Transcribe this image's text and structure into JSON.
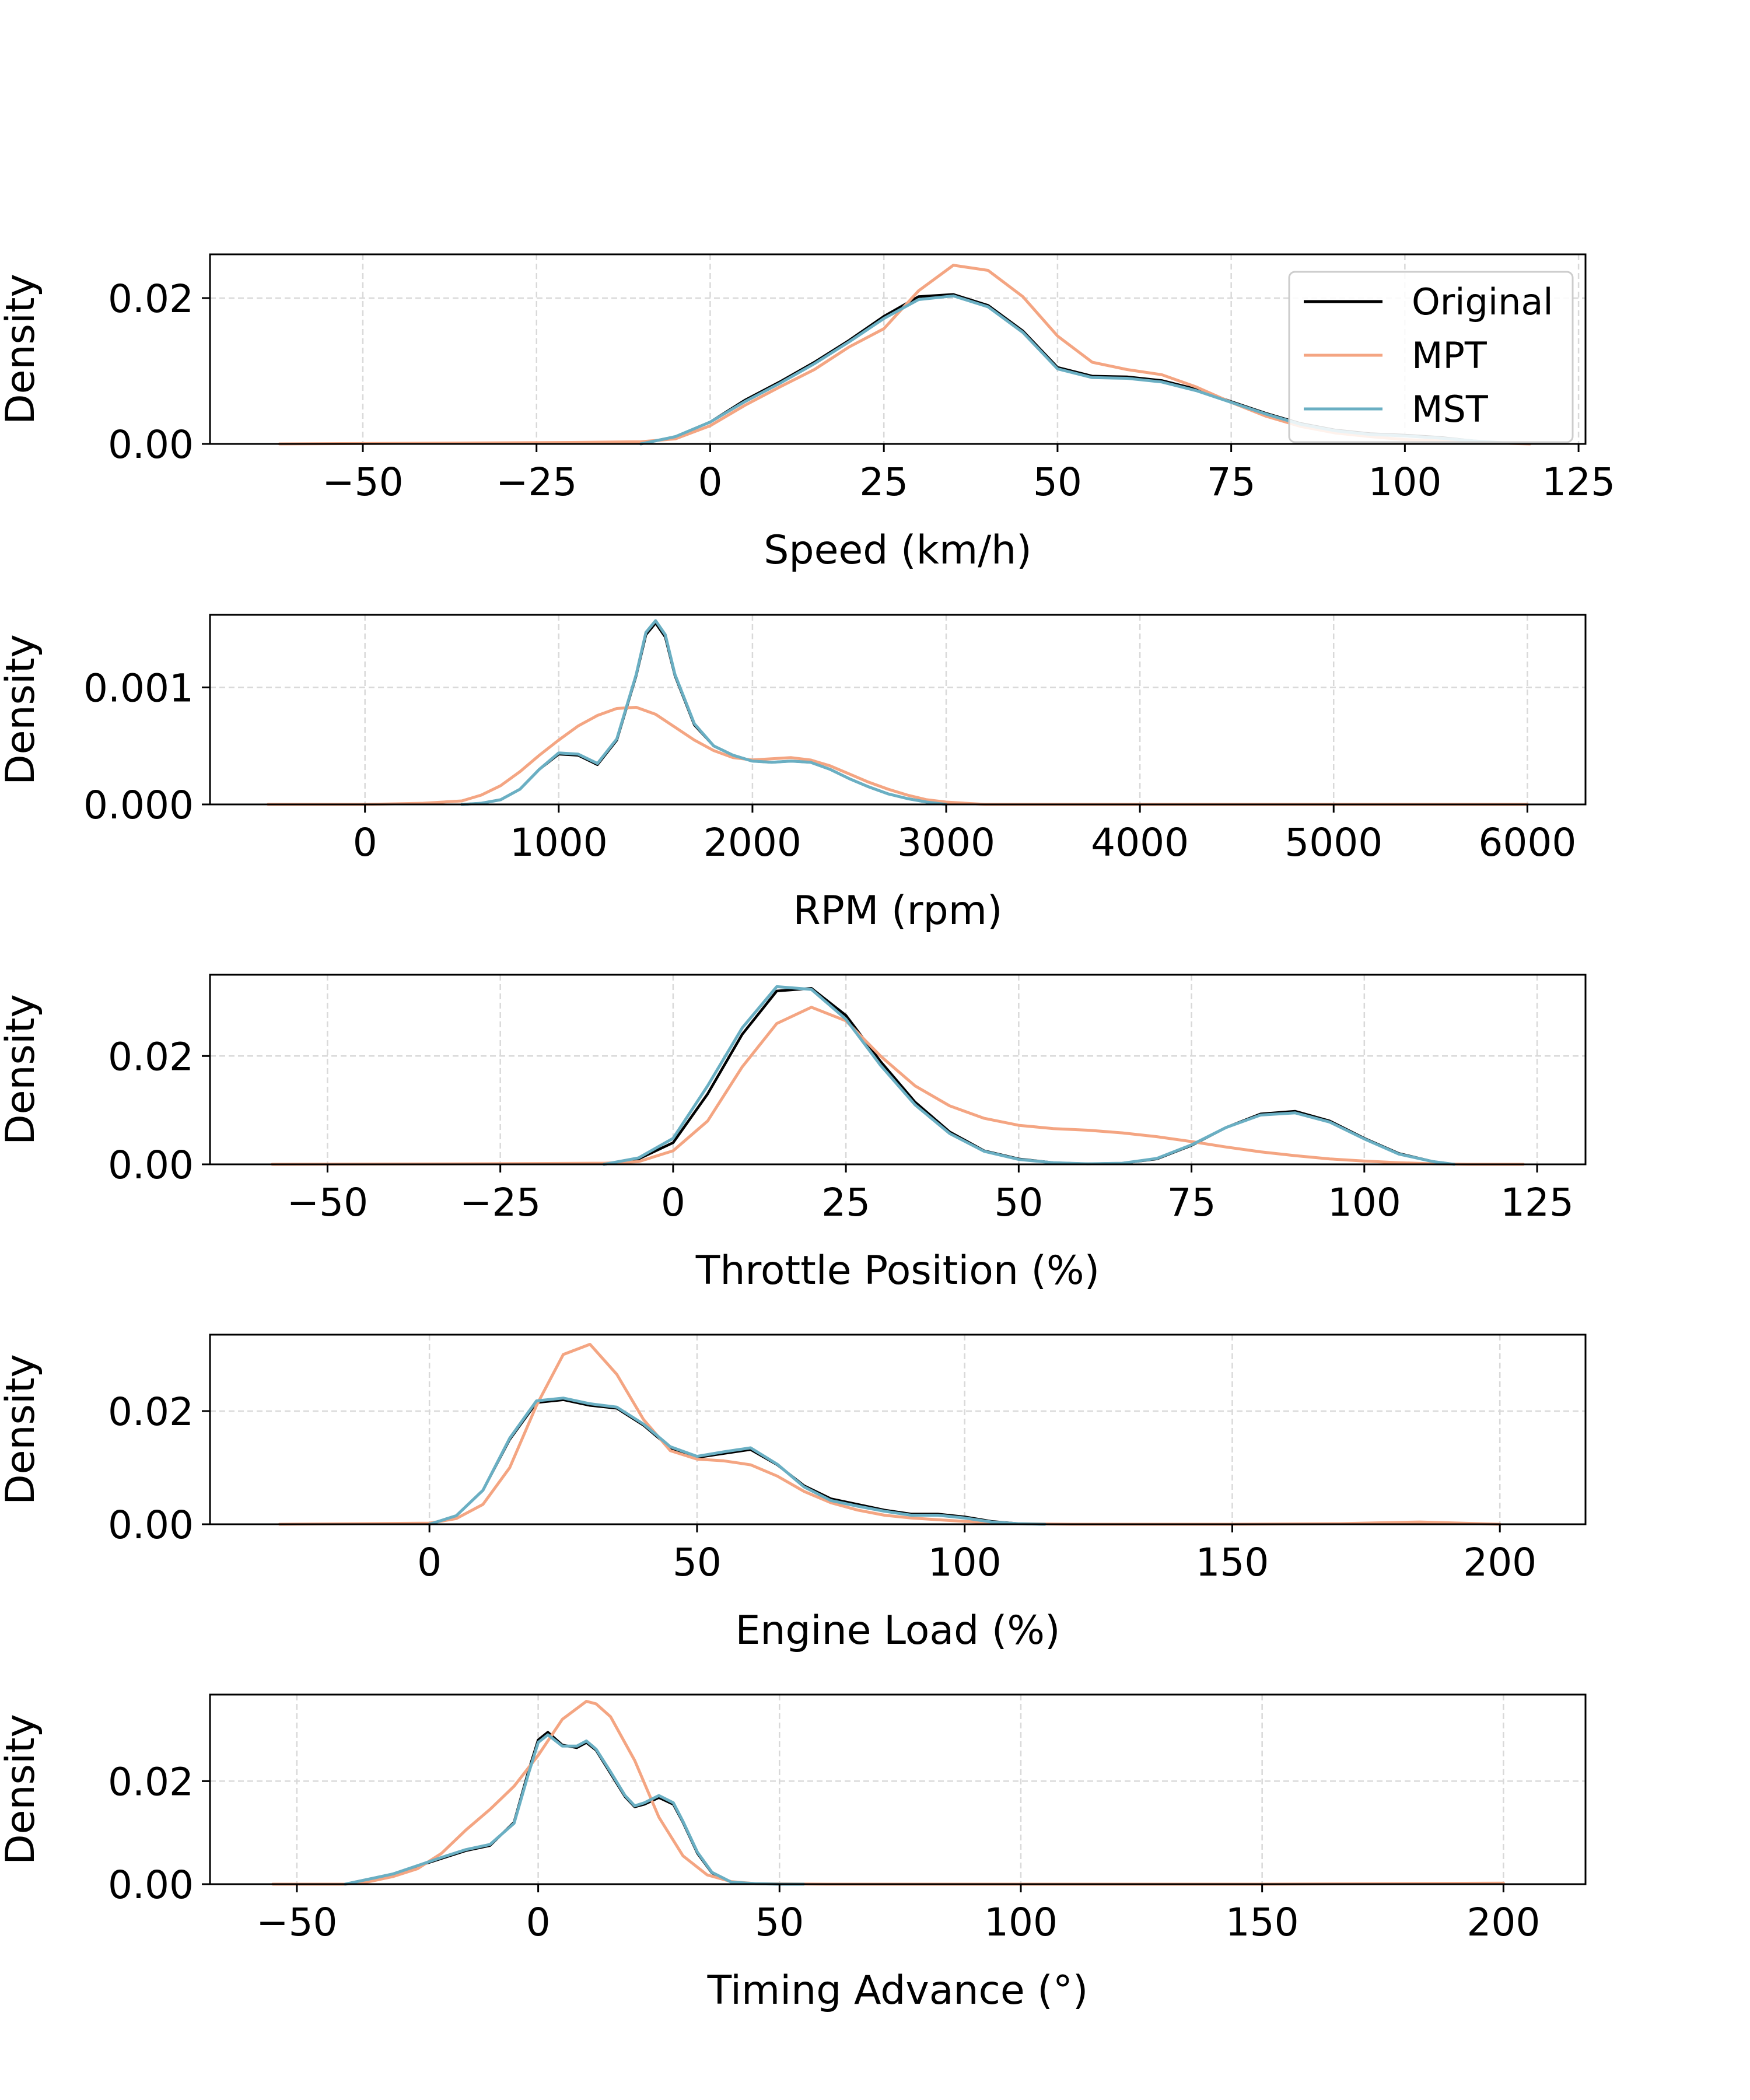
{
  "chart_data": [
    {
      "type": "line",
      "xlabel": "Speed (km/h)",
      "ylabel": "Density",
      "xlim": [
        -72,
        126
      ],
      "ylim": [
        0,
        0.026
      ],
      "xticks": [
        -50,
        -25,
        0,
        25,
        50,
        75,
        100,
        125
      ],
      "xtick_labels": [
        "−50",
        "−25",
        "0",
        "25",
        "50",
        "75",
        "100",
        "125"
      ],
      "yticks": [
        0,
        0.02
      ],
      "ytick_labels": [
        "0.00",
        "0.02"
      ],
      "grid": true,
      "legend": "top-right",
      "series": [
        {
          "name": "Original",
          "x": [
            -10,
            -5,
            0,
            5,
            10,
            15,
            20,
            25,
            30,
            35,
            40,
            45,
            50,
            55,
            60,
            65,
            70,
            75,
            80,
            85,
            90,
            95,
            100,
            105,
            110,
            115
          ],
          "y": [
            0.0,
            0.001,
            0.003,
            0.006,
            0.0085,
            0.0112,
            0.0142,
            0.0175,
            0.0202,
            0.0205,
            0.019,
            0.0155,
            0.0105,
            0.0093,
            0.0092,
            0.0087,
            0.0075,
            0.0058,
            0.0042,
            0.0028,
            0.0019,
            0.0014,
            0.0012,
            0.0009,
            0.0004,
            0.0001
          ]
        },
        {
          "name": "MPT",
          "x": [
            -62,
            -40,
            -20,
            -10,
            -5,
            0,
            5,
            10,
            15,
            20,
            25,
            30,
            35,
            40,
            45,
            50,
            55,
            60,
            65,
            70,
            75,
            80,
            85,
            90,
            95,
            100,
            105,
            110,
            118
          ],
          "y": [
            0.0,
            0.0001,
            0.0002,
            0.0003,
            0.0007,
            0.0025,
            0.0053,
            0.0078,
            0.0102,
            0.0133,
            0.0158,
            0.021,
            0.0245,
            0.0238,
            0.0202,
            0.0148,
            0.0112,
            0.0102,
            0.0095,
            0.0078,
            0.0057,
            0.0038,
            0.0024,
            0.0015,
            0.001,
            0.0006,
            0.0004,
            0.0002,
            0.0
          ]
        },
        {
          "name": "MST",
          "x": [
            -10,
            -5,
            0,
            5,
            10,
            15,
            20,
            25,
            30,
            35,
            40,
            45,
            50,
            55,
            60,
            65,
            70,
            75,
            80,
            85,
            90,
            95,
            100,
            105,
            110,
            115
          ],
          "y": [
            0.0,
            0.001,
            0.003,
            0.0058,
            0.0083,
            0.011,
            0.014,
            0.0172,
            0.0198,
            0.0203,
            0.0188,
            0.0153,
            0.0103,
            0.0091,
            0.009,
            0.0085,
            0.0073,
            0.0057,
            0.0041,
            0.0027,
            0.0018,
            0.0013,
            0.0011,
            0.0008,
            0.0004,
            0.0001
          ]
        }
      ]
    },
    {
      "type": "line",
      "xlabel": "RPM (rpm)",
      "ylabel": "Density",
      "xlim": [
        -800,
        6300
      ],
      "ylim": [
        0,
        0.00162
      ],
      "xticks": [
        0,
        1000,
        2000,
        3000,
        4000,
        5000,
        6000
      ],
      "xtick_labels": [
        "0",
        "1000",
        "2000",
        "3000",
        "4000",
        "5000",
        "6000"
      ],
      "yticks": [
        0,
        0.001
      ],
      "ytick_labels": [
        "0.000",
        "0.001"
      ],
      "grid": true,
      "series": [
        {
          "name": "Original",
          "x": [
            500,
            600,
            700,
            800,
            900,
            1000,
            1100,
            1200,
            1300,
            1400,
            1450,
            1500,
            1550,
            1600,
            1700,
            1800,
            1900,
            2000,
            2100,
            2200,
            2300,
            2400,
            2500,
            2600,
            2700,
            2800,
            2900,
            3000
          ],
          "y": [
            0.0,
            1e-05,
            4e-05,
            0.00013,
            0.0003,
            0.00043,
            0.00042,
            0.00034,
            0.00055,
            0.0011,
            0.00145,
            0.00155,
            0.00143,
            0.0011,
            0.00068,
            0.0005,
            0.00042,
            0.00037,
            0.00036,
            0.00037,
            0.00036,
            0.0003,
            0.00022,
            0.00015,
            9e-05,
            5e-05,
            2e-05,
            0.0
          ]
        },
        {
          "name": "MPT",
          "x": [
            -500,
            0,
            300,
            500,
            600,
            700,
            800,
            900,
            1000,
            1100,
            1200,
            1300,
            1400,
            1500,
            1600,
            1700,
            1800,
            1900,
            2000,
            2100,
            2200,
            2300,
            2400,
            2500,
            2600,
            2700,
            2800,
            2900,
            3000,
            3200,
            4000,
            5000,
            6000
          ],
          "y": [
            0.0,
            0.0,
            1e-05,
            3e-05,
            8e-05,
            0.00016,
            0.00028,
            0.00042,
            0.00055,
            0.00067,
            0.00076,
            0.00082,
            0.00083,
            0.00077,
            0.00066,
            0.00055,
            0.00046,
            0.0004,
            0.00038,
            0.00039,
            0.0004,
            0.00038,
            0.00033,
            0.00026,
            0.00019,
            0.00013,
            8e-05,
            4e-05,
            2e-05,
            0.0,
            0.0,
            0.0,
            0.0
          ]
        },
        {
          "name": "MST",
          "x": [
            500,
            600,
            700,
            800,
            900,
            1000,
            1100,
            1200,
            1300,
            1400,
            1450,
            1500,
            1550,
            1600,
            1700,
            1800,
            1900,
            2000,
            2100,
            2200,
            2300,
            2400,
            2500,
            2600,
            2700,
            2800,
            2900,
            3000
          ],
          "y": [
            0.0,
            1e-05,
            4e-05,
            0.00013,
            0.0003,
            0.00044,
            0.00043,
            0.00035,
            0.00056,
            0.00111,
            0.00147,
            0.00157,
            0.00145,
            0.00111,
            0.00069,
            0.0005,
            0.00042,
            0.00037,
            0.00036,
            0.00037,
            0.00036,
            0.0003,
            0.00022,
            0.00015,
            9e-05,
            5e-05,
            2e-05,
            0.0
          ]
        }
      ]
    },
    {
      "type": "line",
      "xlabel": "Throttle Position (%)",
      "ylabel": "Density",
      "xlim": [
        -67,
        132
      ],
      "ylim": [
        0,
        0.035
      ],
      "xticks": [
        -50,
        -25,
        0,
        25,
        50,
        75,
        100,
        125
      ],
      "xtick_labels": [
        "−50",
        "−25",
        "0",
        "25",
        "50",
        "75",
        "100",
        "125"
      ],
      "yticks": [
        0,
        0.02
      ],
      "ytick_labels": [
        "0.00",
        "0.02"
      ],
      "grid": true,
      "series": [
        {
          "name": "Original",
          "x": [
            -10,
            -5,
            0,
            5,
            10,
            15,
            20,
            25,
            30,
            35,
            40,
            45,
            50,
            55,
            60,
            65,
            70,
            75,
            80,
            85,
            90,
            95,
            100,
            105,
            110,
            113
          ],
          "y": [
            0.0,
            0.001,
            0.004,
            0.013,
            0.024,
            0.032,
            0.0325,
            0.0275,
            0.019,
            0.0115,
            0.006,
            0.0025,
            0.001,
            0.0003,
            0.0001,
            0.0002,
            0.001,
            0.0035,
            0.0068,
            0.0093,
            0.0098,
            0.008,
            0.0048,
            0.002,
            0.0005,
            0.0
          ]
        },
        {
          "name": "MPT",
          "x": [
            -58,
            -30,
            -10,
            -5,
            0,
            5,
            10,
            15,
            20,
            25,
            30,
            35,
            40,
            45,
            50,
            55,
            60,
            65,
            70,
            75,
            80,
            85,
            90,
            95,
            100,
            105,
            110,
            115,
            123
          ],
          "y": [
            0.0,
            0.0001,
            0.0002,
            0.0005,
            0.0025,
            0.008,
            0.018,
            0.026,
            0.029,
            0.0265,
            0.02,
            0.0145,
            0.0108,
            0.0085,
            0.0072,
            0.0066,
            0.0063,
            0.0058,
            0.0051,
            0.0042,
            0.0032,
            0.0023,
            0.0016,
            0.001,
            0.0006,
            0.0003,
            0.0001,
            0.0,
            0.0
          ]
        },
        {
          "name": "MST",
          "x": [
            -10,
            -5,
            0,
            5,
            10,
            15,
            20,
            25,
            30,
            35,
            40,
            45,
            50,
            55,
            60,
            65,
            70,
            75,
            80,
            85,
            90,
            95,
            100,
            105,
            110,
            113
          ],
          "y": [
            0.0,
            0.0012,
            0.0048,
            0.0145,
            0.0252,
            0.0328,
            0.0323,
            0.0268,
            0.0183,
            0.011,
            0.0057,
            0.0024,
            0.0009,
            0.0003,
            0.0001,
            0.0002,
            0.0011,
            0.0036,
            0.0068,
            0.0091,
            0.0095,
            0.0078,
            0.0047,
            0.0019,
            0.0005,
            0.0
          ]
        }
      ]
    },
    {
      "type": "line",
      "xlabel": "Engine Load (%)",
      "ylabel": "Density",
      "xlim": [
        -41,
        216
      ],
      "ylim": [
        0,
        0.0335
      ],
      "xticks": [
        0,
        50,
        100,
        150,
        200
      ],
      "xtick_labels": [
        "0",
        "50",
        "100",
        "150",
        "200"
      ],
      "yticks": [
        0,
        0.02
      ],
      "ytick_labels": [
        "0.00",
        "0.02"
      ],
      "grid": true,
      "series": [
        {
          "name": "Original",
          "x": [
            0,
            5,
            10,
            15,
            20,
            25,
            30,
            35,
            40,
            45,
            50,
            55,
            60,
            65,
            70,
            75,
            80,
            85,
            90,
            95,
            100,
            105,
            110,
            115
          ],
          "y": [
            0.0,
            0.0015,
            0.006,
            0.015,
            0.0215,
            0.022,
            0.021,
            0.0205,
            0.0175,
            0.0135,
            0.0118,
            0.0125,
            0.0132,
            0.0105,
            0.0068,
            0.0045,
            0.0035,
            0.0025,
            0.0018,
            0.0018,
            0.0013,
            0.0005,
            0.0001,
            0.0
          ]
        },
        {
          "name": "MPT",
          "x": [
            -28,
            0,
            5,
            10,
            15,
            20,
            25,
            30,
            35,
            40,
            45,
            50,
            55,
            60,
            65,
            70,
            75,
            80,
            85,
            90,
            95,
            100,
            105,
            110,
            120,
            150,
            170,
            185,
            200
          ],
          "y": [
            0.0,
            0.0002,
            0.001,
            0.0035,
            0.01,
            0.021,
            0.03,
            0.0318,
            0.0265,
            0.0185,
            0.013,
            0.0115,
            0.0112,
            0.0105,
            0.0085,
            0.0058,
            0.0038,
            0.0025,
            0.0016,
            0.0011,
            0.0008,
            0.0005,
            0.0003,
            0.0001,
            0.0,
            0.0,
            0.0001,
            0.0004,
            0.0
          ]
        },
        {
          "name": "MST",
          "x": [
            0,
            5,
            10,
            15,
            20,
            25,
            30,
            35,
            40,
            45,
            50,
            55,
            60,
            65,
            70,
            75,
            80,
            85,
            90,
            95,
            100,
            105,
            110,
            115
          ],
          "y": [
            0.0,
            0.0015,
            0.006,
            0.0152,
            0.0218,
            0.0223,
            0.0213,
            0.0207,
            0.0177,
            0.0137,
            0.012,
            0.0128,
            0.0135,
            0.0106,
            0.0066,
            0.0042,
            0.0032,
            0.0023,
            0.0016,
            0.0016,
            0.0011,
            0.0004,
            0.0001,
            0.0
          ]
        }
      ]
    },
    {
      "type": "line",
      "xlabel": "Timing Advance (°)",
      "ylabel": "Density",
      "xlim": [
        -68,
        217
      ],
      "ylim": [
        0,
        0.0368
      ],
      "xticks": [
        -50,
        0,
        50,
        100,
        150,
        200
      ],
      "xtick_labels": [
        "−50",
        "0",
        "50",
        "100",
        "150",
        "200"
      ],
      "yticks": [
        0,
        0.02
      ],
      "ytick_labels": [
        "0.00",
        "0.02"
      ],
      "grid": true,
      "series": [
        {
          "name": "Original",
          "x": [
            -40,
            -35,
            -30,
            -25,
            -20,
            -15,
            -10,
            -5,
            -2,
            0,
            2,
            5,
            8,
            10,
            12,
            15,
            18,
            20,
            22,
            25,
            28,
            30,
            33,
            36,
            40,
            45,
            50,
            55
          ],
          "y": [
            0.0,
            0.001,
            0.002,
            0.0035,
            0.005,
            0.0065,
            0.0075,
            0.012,
            0.022,
            0.028,
            0.0295,
            0.027,
            0.0265,
            0.0275,
            0.026,
            0.0215,
            0.017,
            0.015,
            0.0155,
            0.0168,
            0.0155,
            0.012,
            0.006,
            0.0022,
            0.0004,
            0.0001,
            0.0,
            0.0
          ]
        },
        {
          "name": "MPT",
          "x": [
            -55,
            -40,
            -35,
            -30,
            -25,
            -20,
            -15,
            -10,
            -5,
            0,
            5,
            10,
            12,
            15,
            20,
            25,
            30,
            35,
            40,
            45,
            60,
            100,
            150,
            200
          ],
          "y": [
            0.0,
            0.0,
            0.0005,
            0.0015,
            0.003,
            0.006,
            0.0105,
            0.0145,
            0.019,
            0.025,
            0.032,
            0.0355,
            0.035,
            0.0325,
            0.024,
            0.013,
            0.0055,
            0.0018,
            0.0005,
            0.0001,
            0.0,
            0.0,
            0.0,
            0.0002
          ]
        },
        {
          "name": "MST",
          "x": [
            -40,
            -35,
            -30,
            -25,
            -20,
            -15,
            -10,
            -5,
            -2,
            0,
            2,
            5,
            8,
            10,
            12,
            15,
            18,
            20,
            22,
            25,
            28,
            30,
            33,
            36,
            40,
            45,
            50,
            55
          ],
          "y": [
            0.0,
            0.001,
            0.002,
            0.0036,
            0.0052,
            0.0067,
            0.0077,
            0.0118,
            0.0215,
            0.0275,
            0.029,
            0.0268,
            0.0268,
            0.0278,
            0.0262,
            0.0218,
            0.0172,
            0.0152,
            0.0158,
            0.0172,
            0.0158,
            0.0122,
            0.0062,
            0.0023,
            0.0004,
            0.0001,
            0.0,
            0.0
          ]
        }
      ]
    }
  ],
  "legend": {
    "entries": [
      {
        "name": "Original",
        "color": "#000000"
      },
      {
        "name": "MPT",
        "color": "#f4a582"
      },
      {
        "name": "MST",
        "color": "#6aafc3"
      }
    ]
  },
  "colors": {
    "Original": "#000000",
    "MPT": "#f4a582",
    "MST": "#6aafc3"
  }
}
